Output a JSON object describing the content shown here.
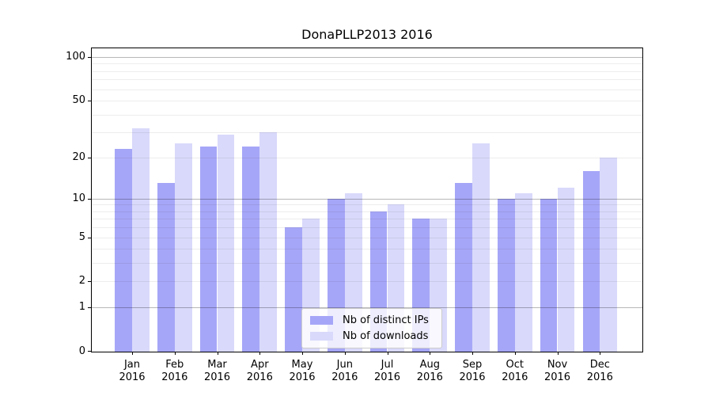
{
  "title": "DonaPLLP2013 2016",
  "colors": {
    "ips_bar": "#a6a6f8",
    "downloads_bar": "#d9d9fb",
    "grid_major": "rgba(0,0,0,0.28)",
    "grid_minor": "rgba(0,0,0,0.07)",
    "axis": "#000000"
  },
  "legend": {
    "items": [
      {
        "label": "Nb of distinct IPs",
        "color_key": "ips_bar"
      },
      {
        "label": "Nb of downloads",
        "color_key": "downloads_bar"
      }
    ],
    "position": "lower center"
  },
  "x_axis": {
    "months": [
      "Jan",
      "Feb",
      "Mar",
      "Apr",
      "May",
      "Jun",
      "Jul",
      "Aug",
      "Sep",
      "Oct",
      "Nov",
      "Dec"
    ],
    "year": "2016"
  },
  "y_axis": {
    "ticks": [
      {
        "value": 0,
        "label": "0"
      },
      {
        "value": 1,
        "label": "1"
      },
      {
        "value": 2,
        "label": "2"
      },
      {
        "value": 5,
        "label": "5"
      },
      {
        "value": 10,
        "label": "10"
      },
      {
        "value": 20,
        "label": "20"
      },
      {
        "value": 50,
        "label": "50"
      },
      {
        "value": 100,
        "label": "100"
      }
    ],
    "major_gridlines": [
      1,
      10,
      100
    ],
    "minor_gridlines": [
      2,
      3,
      4,
      5,
      6,
      7,
      8,
      9,
      20,
      30,
      40,
      50,
      60,
      70,
      80,
      90
    ]
  },
  "chart_data": {
    "type": "bar",
    "title": "DonaPLLP2013 2016",
    "categories": [
      "Jan 2016",
      "Feb 2016",
      "Mar 2016",
      "Apr 2016",
      "May 2016",
      "Jun 2016",
      "Jul 2016",
      "Aug 2016",
      "Sep 2016",
      "Oct 2016",
      "Nov 2016",
      "Dec 2016"
    ],
    "series": [
      {
        "name": "Nb of distinct IPs",
        "values": [
          23,
          13,
          24,
          24,
          6,
          10,
          8,
          7,
          13,
          10,
          10,
          16
        ]
      },
      {
        "name": "Nb of downloads",
        "values": [
          32,
          25,
          29,
          30,
          7,
          11,
          9,
          7,
          25,
          11,
          12,
          20
        ]
      }
    ],
    "yscale": "log1p",
    "ylim": [
      0,
      115
    ],
    "ytick_labels": [
      "0",
      "1",
      "2",
      "5",
      "10",
      "20",
      "50",
      "100"
    ],
    "grid": true,
    "legend_position": "lower center"
  }
}
